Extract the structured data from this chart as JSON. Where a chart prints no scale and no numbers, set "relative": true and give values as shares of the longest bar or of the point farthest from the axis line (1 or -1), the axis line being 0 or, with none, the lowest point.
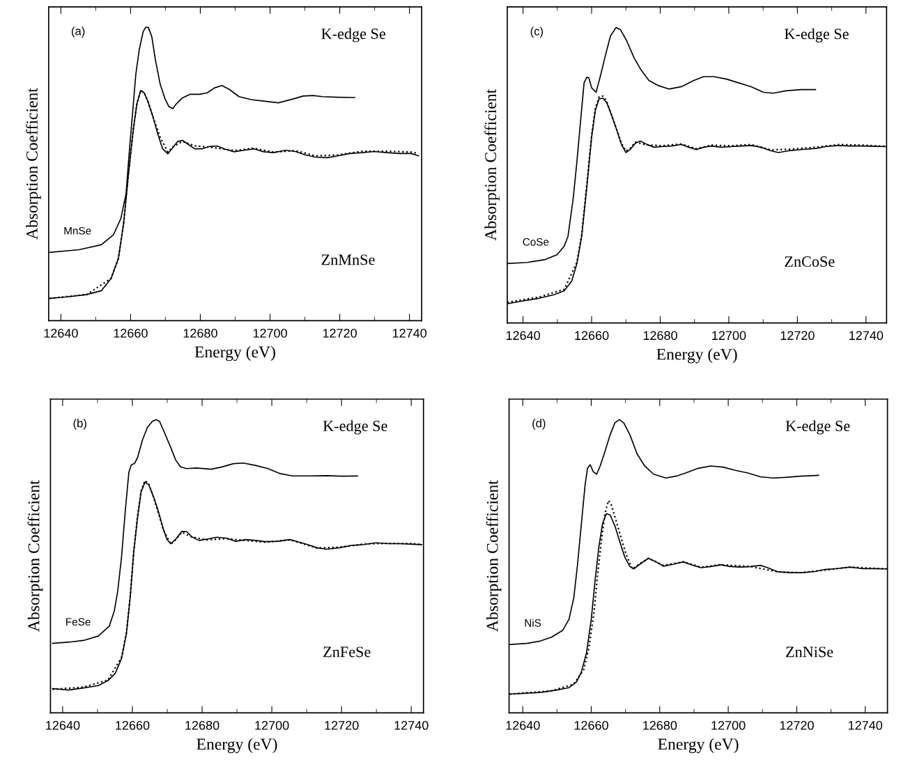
{
  "chart_data": [
    {
      "type": "line",
      "relative": true,
      "xlabel": "Energy (eV)",
      "ylabel": "Absorption Coefficient",
      "annotations": [
        "(a)",
        "K-edge Se",
        "ZnMnSe"
      ],
      "xlim": [
        12636.5,
        12743.5
      ],
      "xticks": [
        12640,
        12660,
        12680,
        12700,
        12720,
        12740
      ],
      "tick_labels": "x",
      "grid": false,
      "legend": false,
      "marker": "none",
      "series": [
        {
          "name": "MnSe",
          "color": "#000000",
          "line_style": "solid",
          "x": [
            12636.8,
            12645.2,
            12651.6,
            12655.1,
            12657.2,
            12658.7,
            12659.7,
            12660.8,
            12661.5,
            12662.5,
            12663.6,
            12664.3,
            12665.1,
            12666.1,
            12667.1,
            12668.5,
            12669.9,
            12671.0,
            12672.1,
            12673.1,
            12674.9,
            12677.0,
            12679.8,
            12682.0,
            12684.1,
            12686.2,
            12688.3,
            12691.1,
            12694.6,
            12698.2,
            12702.4,
            12706.6,
            12709.5,
            12712.3,
            12715.1,
            12719.4,
            12724.3
          ],
          "values": [
            0.233,
            0.242,
            0.259,
            0.293,
            0.348,
            0.433,
            0.586,
            0.739,
            0.84,
            0.925,
            0.985,
            1.0,
            1.0,
            0.968,
            0.891,
            0.806,
            0.756,
            0.73,
            0.723,
            0.739,
            0.76,
            0.772,
            0.772,
            0.777,
            0.794,
            0.802,
            0.789,
            0.764,
            0.754,
            0.749,
            0.743,
            0.756,
            0.766,
            0.768,
            0.764,
            0.762,
            0.761
          ]
        },
        {
          "color": "#000000",
          "line_style": "solid",
          "x": [
            12636.8,
            12641.7,
            12647.4,
            12651.6,
            12654.4,
            12656.5,
            12658.0,
            12659.4,
            12660.8,
            12661.8,
            12662.9,
            12663.9,
            12665.0,
            12666.4,
            12667.8,
            12669.2,
            12670.7,
            12672.1,
            12673.5,
            12674.9,
            12676.3,
            12678.4,
            12680.5,
            12682.6,
            12684.8,
            12686.9,
            12689.7,
            12692.5,
            12695.4,
            12698.2,
            12701.0,
            12704.5,
            12707.3,
            12710.2,
            12713.0,
            12716.5,
            12719.4,
            12722.9,
            12726.4,
            12729.9,
            12733.5,
            12737.0,
            12740.5,
            12742.6
          ],
          "values": [
            0.076,
            0.081,
            0.089,
            0.102,
            0.144,
            0.212,
            0.331,
            0.501,
            0.654,
            0.739,
            0.785,
            0.777,
            0.747,
            0.696,
            0.637,
            0.586,
            0.569,
            0.59,
            0.611,
            0.615,
            0.603,
            0.586,
            0.586,
            0.594,
            0.596,
            0.586,
            0.576,
            0.581,
            0.586,
            0.576,
            0.573,
            0.581,
            0.577,
            0.565,
            0.558,
            0.556,
            0.562,
            0.57,
            0.573,
            0.577,
            0.573,
            0.57,
            0.57,
            0.562
          ]
        },
        {
          "color": "#000000",
          "line_style": "dotted",
          "x": [
            12636.8,
            12647.4,
            12654.4,
            12656.5,
            12658.0,
            12659.4,
            12660.8,
            12661.8,
            12662.9,
            12663.9,
            12665.0,
            12666.4,
            12668.5,
            12670.7,
            12672.1,
            12674.9,
            12678.4,
            12682.6,
            12689.7,
            12695.4,
            12701.0,
            12707.3,
            12713.0,
            12719.4,
            12726.4,
            12733.5,
            12740.5,
            12742.6
          ],
          "values": [
            0.076,
            0.089,
            0.144,
            0.212,
            0.331,
            0.501,
            0.654,
            0.739,
            0.785,
            0.777,
            0.747,
            0.696,
            0.625,
            0.575,
            0.592,
            0.612,
            0.596,
            0.592,
            0.58,
            0.588,
            0.575,
            0.58,
            0.562,
            0.565,
            0.578,
            0.578,
            0.575,
            0.57
          ]
        }
      ]
    },
    {
      "type": "line",
      "relative": true,
      "xlabel": "Energy (eV)",
      "ylabel": "Absorption Coefficient",
      "annotations": [
        "(c)",
        "K-edge Se",
        "ZnCoSe"
      ],
      "xlim": [
        12635.4,
        12746.0
      ],
      "xticks": [
        12640,
        12660,
        12680,
        12700,
        12720,
        12740
      ],
      "tick_labels": "x",
      "grid": false,
      "legend": false,
      "marker": "none",
      "series": [
        {
          "name": "CoSe",
          "color": "#000000",
          "line_style": "solid",
          "x": [
            12635.4,
            12641.2,
            12646.2,
            12649.9,
            12652.0,
            12653.1,
            12654.6,
            12655.7,
            12656.8,
            12657.8,
            12658.6,
            12659.2,
            12660.0,
            12661.3,
            12662.6,
            12664.0,
            12665.5,
            12667.1,
            12668.4,
            12670.2,
            12672.4,
            12674.5,
            12676.7,
            12679.6,
            12682.5,
            12686.2,
            12689.8,
            12692.7,
            12695.6,
            12699.2,
            12702.8,
            12706.5,
            12710.1,
            12713.0,
            12716.6,
            12721.0,
            12725.3
          ],
          "values": [
            0.201,
            0.205,
            0.214,
            0.231,
            0.26,
            0.293,
            0.419,
            0.545,
            0.687,
            0.813,
            0.832,
            0.83,
            0.796,
            0.781,
            0.838,
            0.905,
            0.972,
            1.0,
            0.993,
            0.956,
            0.897,
            0.855,
            0.821,
            0.803,
            0.792,
            0.8,
            0.821,
            0.834,
            0.834,
            0.826,
            0.813,
            0.8,
            0.781,
            0.778,
            0.786,
            0.79,
            0.79
          ]
        },
        {
          "color": "#000000",
          "line_style": "solid",
          "x": [
            12635.4,
            12639.7,
            12644.8,
            12649.1,
            12652.0,
            12654.2,
            12655.7,
            12657.1,
            12658.6,
            12660.0,
            12661.1,
            12662.2,
            12663.3,
            12664.4,
            12665.8,
            12667.3,
            12668.7,
            12670.0,
            12671.3,
            12672.7,
            12674.2,
            12676.0,
            12678.2,
            12680.3,
            12683.2,
            12686.2,
            12688.3,
            12690.5,
            12692.7,
            12694.9,
            12697.8,
            12700.7,
            12703.6,
            12706.5,
            12709.4,
            12712.3,
            12714.5,
            12717.4,
            12721.0,
            12725.3,
            12728.2,
            12731.9,
            12735.5,
            12739.1,
            12742.8,
            12746.0
          ],
          "values": [
            0.065,
            0.074,
            0.084,
            0.096,
            0.109,
            0.142,
            0.201,
            0.293,
            0.461,
            0.629,
            0.721,
            0.759,
            0.761,
            0.746,
            0.704,
            0.654,
            0.604,
            0.577,
            0.588,
            0.608,
            0.616,
            0.605,
            0.595,
            0.597,
            0.599,
            0.604,
            0.595,
            0.587,
            0.595,
            0.599,
            0.595,
            0.597,
            0.599,
            0.601,
            0.595,
            0.583,
            0.577,
            0.583,
            0.587,
            0.591,
            0.597,
            0.601,
            0.599,
            0.599,
            0.598,
            0.597
          ]
        },
        {
          "color": "#000000",
          "line_style": "dotted",
          "x": [
            12635.4,
            12644.8,
            12652.0,
            12655.7,
            12657.1,
            12658.6,
            12660.0,
            12661.1,
            12662.2,
            12663.3,
            12664.4,
            12665.8,
            12668.7,
            12670.0,
            12671.3,
            12672.7,
            12676.0,
            12680.3,
            12686.2,
            12690.5,
            12694.9,
            12700.7,
            12706.5,
            12712.3,
            12717.4,
            12725.3,
            12731.9,
            12739.1,
            12746.0
          ],
          "values": [
            0.07,
            0.088,
            0.114,
            0.205,
            0.3,
            0.47,
            0.636,
            0.727,
            0.766,
            0.768,
            0.75,
            0.705,
            0.608,
            0.582,
            0.592,
            0.612,
            0.603,
            0.6,
            0.606,
            0.59,
            0.602,
            0.6,
            0.604,
            0.586,
            0.588,
            0.595,
            0.604,
            0.602,
            0.598
          ]
        }
      ]
    },
    {
      "type": "line",
      "relative": true,
      "xlabel": "Energy (eV)",
      "ylabel": "Absorption Coefficient",
      "annotations": [
        "(b)",
        "K-edge Se",
        "ZnFeSe"
      ],
      "xlim": [
        12636.5,
        12743.5
      ],
      "xticks": [
        12640,
        12660,
        12680,
        12700,
        12720,
        12740
      ],
      "tick_labels": "x",
      "grid": false,
      "legend": false,
      "marker": "none",
      "series": [
        {
          "name": "FeSe",
          "color": "#000000",
          "line_style": "solid",
          "x": [
            12637.1,
            12641.7,
            12646.0,
            12650.2,
            12653.4,
            12654.8,
            12655.8,
            12656.9,
            12658.0,
            12659.0,
            12659.7,
            12660.6,
            12661.5,
            12662.9,
            12664.3,
            12665.7,
            12666.8,
            12667.8,
            12669.2,
            12671.0,
            12672.4,
            12673.8,
            12675.6,
            12678.4,
            12682.6,
            12685.5,
            12689.0,
            12691.8,
            12695.3,
            12698.9,
            12702.4,
            12705.9,
            12710.9,
            12715.8,
            12720.0,
            12724.6
          ],
          "values": [
            0.237,
            0.241,
            0.247,
            0.262,
            0.296,
            0.347,
            0.415,
            0.533,
            0.694,
            0.821,
            0.846,
            0.85,
            0.871,
            0.931,
            0.973,
            0.994,
            1.0,
            0.994,
            0.956,
            0.905,
            0.863,
            0.839,
            0.833,
            0.835,
            0.831,
            0.838,
            0.85,
            0.852,
            0.844,
            0.833,
            0.816,
            0.808,
            0.808,
            0.809,
            0.807,
            0.808
          ]
        },
        {
          "color": "#000000",
          "line_style": "solid",
          "x": [
            12637.1,
            12641.7,
            12646.0,
            12650.2,
            12653.0,
            12655.1,
            12656.9,
            12658.3,
            12659.4,
            12660.4,
            12661.5,
            12662.5,
            12663.6,
            12664.7,
            12666.1,
            12667.5,
            12668.9,
            12669.9,
            12671.0,
            12672.4,
            12674.2,
            12675.6,
            12677.0,
            12679.1,
            12681.2,
            12684.1,
            12686.9,
            12689.7,
            12692.5,
            12695.4,
            12698.2,
            12701.7,
            12705.2,
            12707.3,
            12710.2,
            12713.0,
            12715.8,
            12719.4,
            12722.9,
            12726.4,
            12729.9,
            12733.5,
            12737.0,
            12740.5,
            12743.0
          ],
          "values": [
            0.083,
            0.078,
            0.085,
            0.093,
            0.11,
            0.135,
            0.186,
            0.271,
            0.398,
            0.55,
            0.668,
            0.753,
            0.787,
            0.778,
            0.736,
            0.685,
            0.626,
            0.592,
            0.577,
            0.592,
            0.619,
            0.618,
            0.601,
            0.588,
            0.592,
            0.599,
            0.596,
            0.585,
            0.591,
            0.588,
            0.584,
            0.585,
            0.591,
            0.584,
            0.574,
            0.563,
            0.558,
            0.563,
            0.571,
            0.574,
            0.58,
            0.577,
            0.577,
            0.575,
            0.574
          ]
        },
        {
          "color": "#000000",
          "line_style": "dotted",
          "x": [
            12637.1,
            12646.0,
            12653.0,
            12656.9,
            12658.3,
            12659.4,
            12660.4,
            12661.5,
            12662.5,
            12663.6,
            12664.7,
            12666.1,
            12668.9,
            12671.0,
            12672.4,
            12674.2,
            12677.0,
            12681.2,
            12686.9,
            12692.5,
            12698.2,
            12705.2,
            12713.0,
            12719.4,
            12726.4,
            12733.5,
            12740.5,
            12743.0
          ],
          "values": [
            0.08,
            0.088,
            0.112,
            0.19,
            0.275,
            0.4,
            0.552,
            0.672,
            0.757,
            0.792,
            0.78,
            0.735,
            0.624,
            0.575,
            0.59,
            0.616,
            0.6,
            0.59,
            0.594,
            0.588,
            0.582,
            0.59,
            0.562,
            0.565,
            0.576,
            0.578,
            0.577,
            0.574
          ]
        }
      ]
    },
    {
      "type": "line",
      "relative": true,
      "xlabel": "Energy (eV)",
      "ylabel": "Absorption Coefficient",
      "annotations": [
        "(d)",
        "K-edge Se",
        "ZnNiSe"
      ],
      "xlim": [
        12636.0,
        12746.5
      ],
      "xticks": [
        12640,
        12660,
        12680,
        12700,
        12720,
        12740
      ],
      "tick_labels": "x",
      "grid": false,
      "legend": false,
      "marker": "none",
      "series": [
        {
          "name": "NiS",
          "color": "#000000",
          "line_style": "solid",
          "x": [
            12636.2,
            12641.2,
            12644.8,
            12648.4,
            12651.7,
            12653.5,
            12654.9,
            12656.0,
            12657.1,
            12658.2,
            12658.9,
            12659.7,
            12660.6,
            12661.6,
            12662.6,
            12664.0,
            12665.5,
            12666.9,
            12668.2,
            12669.5,
            12671.3,
            12673.4,
            12675.6,
            12678.2,
            12681.8,
            12684.7,
            12687.6,
            12691.2,
            12694.9,
            12698.5,
            12702.1,
            12705.7,
            12709.4,
            12713.0,
            12716.6,
            12721.0,
            12726.4
          ],
          "values": [
            0.233,
            0.237,
            0.244,
            0.258,
            0.282,
            0.319,
            0.392,
            0.507,
            0.643,
            0.777,
            0.834,
            0.846,
            0.822,
            0.814,
            0.842,
            0.891,
            0.948,
            0.989,
            1.0,
            0.989,
            0.948,
            0.883,
            0.842,
            0.814,
            0.801,
            0.807,
            0.818,
            0.834,
            0.842,
            0.838,
            0.827,
            0.818,
            0.805,
            0.801,
            0.803,
            0.807,
            0.81
          ]
        },
        {
          "color": "#000000",
          "line_style": "solid",
          "x": [
            12636.2,
            12641.2,
            12645.5,
            12649.9,
            12653.5,
            12655.7,
            12657.1,
            12658.6,
            12660.0,
            12661.1,
            12662.2,
            12663.3,
            12664.4,
            12665.5,
            12666.9,
            12668.4,
            12669.8,
            12671.3,
            12672.4,
            12674.2,
            12676.7,
            12678.9,
            12681.1,
            12684.0,
            12686.9,
            12689.8,
            12692.0,
            12694.9,
            12697.8,
            12700.7,
            12703.6,
            12706.5,
            12709.4,
            12711.5,
            12714.5,
            12718.1,
            12721.7,
            12725.3,
            12728.2,
            12731.9,
            12735.5,
            12739.1,
            12742.8,
            12746.2
          ],
          "values": [
            0.064,
            0.067,
            0.07,
            0.078,
            0.086,
            0.106,
            0.139,
            0.204,
            0.319,
            0.45,
            0.564,
            0.646,
            0.679,
            0.675,
            0.638,
            0.581,
            0.531,
            0.499,
            0.491,
            0.507,
            0.527,
            0.515,
            0.5,
            0.507,
            0.515,
            0.503,
            0.495,
            0.499,
            0.505,
            0.499,
            0.497,
            0.499,
            0.503,
            0.495,
            0.481,
            0.478,
            0.478,
            0.482,
            0.489,
            0.492,
            0.497,
            0.492,
            0.492,
            0.491
          ]
        },
        {
          "color": "#000000",
          "line_style": "dotted",
          "x": [
            12636.2,
            12648.4,
            12654.9,
            12657.8,
            12659.3,
            12660.8,
            12661.8,
            12662.9,
            12664.0,
            12665.0,
            12665.8,
            12667.3,
            12668.7,
            12670.2,
            12672.0,
            12674.5,
            12676.7,
            12681.1,
            12686.9,
            12692.0,
            12697.8,
            12706.5,
            12714.5,
            12721.0,
            12728.2,
            12735.5,
            12746.2
          ],
          "values": [
            0.064,
            0.075,
            0.098,
            0.147,
            0.221,
            0.343,
            0.466,
            0.581,
            0.679,
            0.724,
            0.711,
            0.654,
            0.597,
            0.54,
            0.491,
            0.511,
            0.527,
            0.503,
            0.515,
            0.497,
            0.505,
            0.499,
            0.481,
            0.478,
            0.487,
            0.497,
            0.491
          ]
        }
      ]
    }
  ]
}
